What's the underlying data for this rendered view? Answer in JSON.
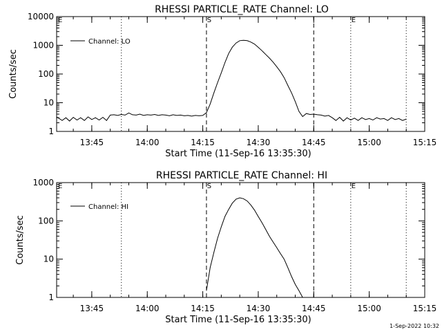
{
  "chart_data": [
    {
      "type": "line",
      "title": "RHESSI PARTICLE_RATE Channel: LO",
      "xlabel": "Start Time (11-Sep-16 13:35:30)",
      "ylabel": "Counts/sec",
      "y_scale": "log",
      "ylim": [
        1,
        10000
      ],
      "y_ticks": [
        "1",
        "10",
        "100",
        "1000",
        "10000"
      ],
      "x_ticks": [
        "13:45",
        "14:00",
        "14:15",
        "14:30",
        "14:45",
        "15:00",
        "15:15"
      ],
      "legend": {
        "placement": "top-left",
        "entries": [
          "Channel: LO"
        ]
      },
      "markers": {
        "S": "S",
        "E": "E"
      },
      "series": [
        {
          "name": "Channel: LO",
          "x": [
            "13:35:30",
            "13:37",
            "13:38",
            "13:39",
            "13:40",
            "13:41",
            "13:42",
            "13:43",
            "13:44",
            "13:45",
            "13:46",
            "13:47",
            "13:48",
            "13:49",
            "13:50",
            "13:51",
            "13:52",
            "13:53",
            "13:54",
            "13:55",
            "13:56",
            "13:57",
            "13:58",
            "13:59",
            "14:00",
            "14:01",
            "14:02",
            "14:03",
            "14:04",
            "14:05",
            "14:06",
            "14:07",
            "14:08",
            "14:09",
            "14:10",
            "14:11",
            "14:12",
            "14:13",
            "14:14",
            "14:15",
            "14:16",
            "14:17",
            "14:18",
            "14:19",
            "14:20",
            "14:21",
            "14:22",
            "14:23",
            "14:24",
            "14:25",
            "14:26",
            "14:27",
            "14:28",
            "14:29",
            "14:30",
            "14:31",
            "14:32",
            "14:33",
            "14:34",
            "14:35",
            "14:36",
            "14:37",
            "14:38",
            "14:39",
            "14:40",
            "14:41",
            "14:42",
            "14:43",
            "14:44",
            "14:45",
            "14:46",
            "14:47",
            "14:48",
            "14:49",
            "14:50",
            "14:51",
            "14:52",
            "14:53",
            "14:54",
            "14:55",
            "14:56",
            "14:57",
            "14:58",
            "14:59",
            "15:00",
            "15:01",
            "15:02",
            "15:03",
            "15:04",
            "15:05",
            "15:06",
            "15:07",
            "15:08",
            "15:09",
            "15:10"
          ],
          "values": [
            3.2,
            2.4,
            3.0,
            2.3,
            3.1,
            2.5,
            3.0,
            2.4,
            3.2,
            2.6,
            3.0,
            2.5,
            3.1,
            2.4,
            3.7,
            3.8,
            3.6,
            3.9,
            3.7,
            4.4,
            3.8,
            3.7,
            4.0,
            3.6,
            3.8,
            3.7,
            3.9,
            3.6,
            3.8,
            3.7,
            3.5,
            3.8,
            3.6,
            3.7,
            3.5,
            3.6,
            3.4,
            3.6,
            3.5,
            3.6,
            4.5,
            9,
            22,
            50,
            110,
            250,
            520,
            860,
            1200,
            1450,
            1500,
            1450,
            1300,
            1100,
            850,
            650,
            480,
            360,
            260,
            180,
            120,
            75,
            40,
            22,
            11,
            5,
            3.3,
            4.2,
            3.9,
            4.0,
            3.8,
            3.7,
            3.4,
            3.6,
            3.0,
            2.4,
            3.1,
            2.3,
            3.0,
            2.5,
            2.9,
            2.4,
            3.0,
            2.6,
            2.8,
            2.5,
            3.0,
            2.7,
            2.8,
            2.4,
            3.0,
            2.6,
            2.8,
            2.4,
            2.7
          ]
        }
      ]
    },
    {
      "type": "line",
      "title": "RHESSI PARTICLE_RATE Channel: HI",
      "xlabel": "Start Time (11-Sep-16 13:35:30)",
      "ylabel": "Counts/sec",
      "y_scale": "log",
      "ylim": [
        1,
        1000
      ],
      "y_ticks": [
        "1",
        "10",
        "100",
        "1000"
      ],
      "x_ticks": [
        "13:45",
        "14:00",
        "14:15",
        "14:30",
        "14:45",
        "15:00",
        "15:15"
      ],
      "legend": {
        "placement": "top-left",
        "entries": [
          "Channel: HI"
        ]
      },
      "markers": {
        "S": "S",
        "E": "E"
      },
      "series": [
        {
          "name": "Channel: HI",
          "x": [
            "14:16",
            "14:17",
            "14:18",
            "14:19",
            "14:20",
            "14:21",
            "14:22",
            "14:23",
            "14:24",
            "14:25",
            "14:26",
            "14:27",
            "14:28",
            "14:29",
            "14:30",
            "14:31",
            "14:32",
            "14:33",
            "14:34",
            "14:35",
            "14:36",
            "14:37",
            "14:38",
            "14:39",
            "14:40",
            "14:41",
            "14:42"
          ],
          "values": [
            1.5,
            6,
            15,
            35,
            70,
            130,
            200,
            290,
            370,
            400,
            380,
            330,
            260,
            190,
            130,
            90,
            60,
            40,
            28,
            20,
            14,
            10,
            6,
            3.5,
            2.2,
            1.5,
            1.0
          ]
        }
      ]
    }
  ],
  "footer": {
    "timestamp": "1-Sep-2022 10:32"
  }
}
